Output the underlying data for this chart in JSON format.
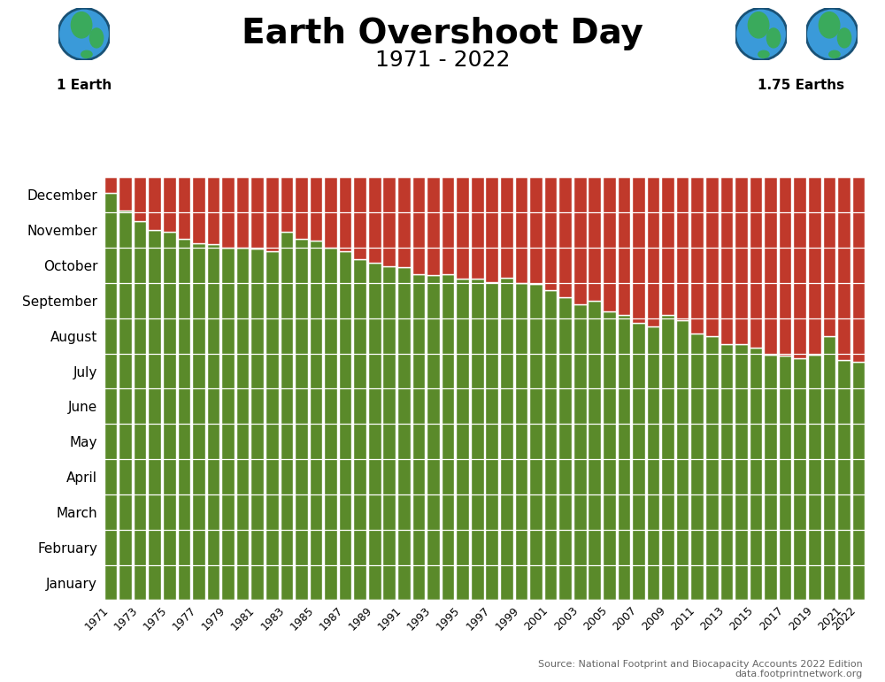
{
  "title": "Earth Overshoot Day",
  "subtitle": "1971 - 2022",
  "green_color": "#5a8a2a",
  "red_color": "#c0392b",
  "bg_color": "#ffffff",
  "bar_edge_color": "#ffffff",
  "source_text": "Source: National Footprint and Biocapacity Accounts 2022 Edition\ndata.footprintnetwork.org",
  "label_left": "1 Earth",
  "label_right": "1.75 Earths",
  "years": [
    1971,
    1972,
    1973,
    1974,
    1975,
    1976,
    1977,
    1978,
    1979,
    1980,
    1981,
    1982,
    1983,
    1984,
    1985,
    1986,
    1987,
    1988,
    1989,
    1990,
    1991,
    1992,
    1993,
    1994,
    1995,
    1996,
    1997,
    1998,
    1999,
    2000,
    2001,
    2002,
    2003,
    2004,
    2005,
    2006,
    2007,
    2008,
    2009,
    2010,
    2011,
    2012,
    2013,
    2014,
    2015,
    2016,
    2017,
    2018,
    2019,
    2020,
    2021,
    2022
  ],
  "overshoot_day_of_year": [
    352,
    337,
    328,
    320,
    319,
    313,
    309,
    308,
    305,
    305,
    304,
    302,
    319,
    313,
    311,
    305,
    302,
    295,
    292,
    289,
    288,
    282,
    281,
    282,
    278,
    278,
    275,
    279,
    274,
    273,
    268,
    262,
    256,
    259,
    250,
    247,
    240,
    237,
    247,
    242,
    231,
    228,
    221,
    221,
    218,
    212,
    211,
    209,
    212,
    228,
    207,
    206
  ],
  "months": [
    "January",
    "February",
    "March",
    "April",
    "May",
    "June",
    "July",
    "August",
    "September",
    "October",
    "November",
    "December"
  ],
  "month_days": [
    31,
    28,
    31,
    30,
    31,
    30,
    31,
    31,
    30,
    31,
    30,
    31
  ],
  "total_days": 365,
  "ocean_color": "#3a9ad9",
  "land_color": "#3aaa5c",
  "globe_border_color": "#1a5276"
}
